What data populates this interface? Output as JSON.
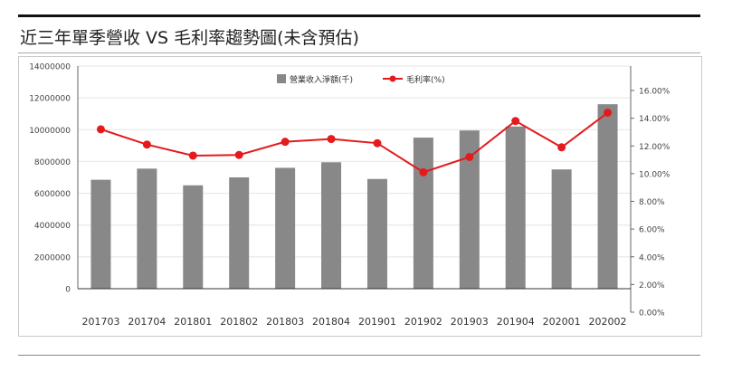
{
  "page": {
    "title": "近三年單季營收 VS 毛利率趨勢圖(未含預估)"
  },
  "chart_data": {
    "type": "bar+line",
    "categories": [
      "201703",
      "201704",
      "201801",
      "201802",
      "201803",
      "201804",
      "201901",
      "201902",
      "201903",
      "201904",
      "202001",
      "202002"
    ],
    "series": [
      {
        "name": "營業收入淨額(千)",
        "type": "bar",
        "axis": "left",
        "color": "#888888",
        "values": [
          6850000,
          7550000,
          6500000,
          7000000,
          7600000,
          7950000,
          6900000,
          9500000,
          9950000,
          10200000,
          7500000,
          11600000
        ]
      },
      {
        "name": "毛利率(%)",
        "type": "line",
        "axis": "right",
        "color": "#e41a1c",
        "values": [
          13.2,
          12.1,
          11.3,
          11.35,
          12.3,
          12.5,
          12.2,
          10.1,
          11.2,
          13.8,
          11.9,
          14.4
        ]
      }
    ],
    "y_left": {
      "range": [
        0,
        14000000
      ],
      "ticks": [
        "14000000",
        "12000000",
        "10000000",
        "8000000",
        "6000000",
        "4000000",
        "2000000",
        "0"
      ]
    },
    "y_right": {
      "range": [
        0,
        17
      ],
      "ticks": [
        "16.00%",
        "14.00%",
        "12.00%",
        "10.00%",
        "8.00%",
        "6.00%",
        "4.00%",
        "2.00%",
        "0.00%"
      ]
    },
    "grid": true,
    "legend": "top-center"
  }
}
